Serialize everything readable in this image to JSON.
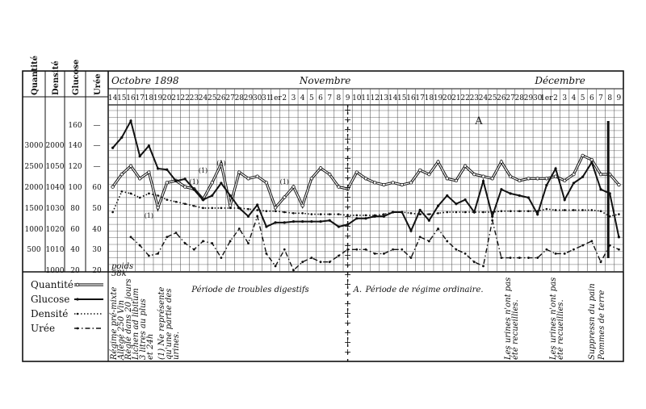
{
  "chart_data": {
    "type": "line",
    "title": "",
    "axes": [
      {
        "name": "Quantité",
        "ticks": [
          "3000",
          "2500",
          "2000",
          "1500",
          "1000",
          "500"
        ]
      },
      {
        "name": "Densité",
        "ticks": [
          "2000",
          "1050",
          "1040",
          "1030",
          "1020",
          "1010",
          "1000"
        ]
      },
      {
        "name": "Glucose",
        "ticks": [
          "160",
          "140",
          "120",
          "100",
          "80",
          "60",
          "40",
          "20"
        ]
      },
      {
        "name": "Urée",
        "ticks": [
          "—",
          "—",
          "—",
          "60",
          "50",
          "40",
          "30",
          "20"
        ]
      }
    ],
    "date_header": {
      "month_labels": [
        "Octobre 1898",
        "Novembre",
        "Décembre"
      ],
      "day_labels": [
        "14",
        "15",
        "16",
        "17",
        "18",
        "19",
        "20",
        "21",
        "22",
        "23",
        "24",
        "25",
        "26",
        "27",
        "28",
        "29",
        "30",
        "31",
        "1er",
        "2",
        "3",
        "4",
        "5",
        "6",
        "7",
        "8",
        "9",
        "10",
        "11",
        "12",
        "13",
        "14",
        "15",
        "16",
        "17",
        "18",
        "19",
        "20",
        "21",
        "22",
        "23",
        "24",
        "25",
        "26",
        "27",
        "28",
        "29",
        "30",
        "1er",
        "2",
        "3",
        "4",
        "5",
        "6",
        "7",
        "8",
        "9"
      ]
    },
    "legend": [
      {
        "name": "Quantité",
        "style": "double-line"
      },
      {
        "name": "Glucose",
        "style": "solid"
      },
      {
        "name": "Densité",
        "style": "dotted"
      },
      {
        "name": "Urée",
        "style": "dash-dot"
      }
    ],
    "series": [
      {
        "name": "Quantité",
        "y_axis": "Quantité",
        "values": [
          2000,
          2300,
          2500,
          2200,
          2350,
          1500,
          2100,
          2150,
          2000,
          1950,
          1700,
          2100,
          2550,
          1550,
          2350,
          2200,
          2250,
          2100,
          1500,
          1750,
          2000,
          1550,
          2200,
          2450,
          2300,
          2000,
          1950,
          2350,
          2200,
          2100,
          2050,
          2100,
          2050,
          2100,
          2400,
          2300,
          2600,
          2200,
          2150,
          2500,
          2300,
          2250,
          2200,
          2600,
          2250,
          2150,
          2200,
          2200,
          2200,
          2250,
          2150,
          2300,
          2750,
          2650,
          2300,
          2300,
          2050
        ]
      },
      {
        "name": "Glucose",
        "y_axis": "Glucose",
        "values": [
          138,
          148,
          164,
          130,
          140,
          118,
          117,
          106,
          108,
          98,
          88,
          92,
          104,
          92,
          80,
          72,
          83,
          62,
          66,
          66,
          67,
          67,
          67,
          67,
          68,
          62,
          64,
          70,
          70,
          72,
          72,
          76,
          76,
          58,
          78,
          68,
          82,
          92,
          84,
          88,
          76,
          106,
          72,
          98,
          94,
          92,
          90,
          74,
          102,
          118,
          88,
          104,
          110,
          124,
          98,
          94,
          52
        ]
      },
      {
        "name": "Densité",
        "y_axis": "Glucose",
        "values": [
          76,
          96,
          94,
          90,
          94,
          92,
          88,
          86,
          84,
          82,
          80,
          80,
          80,
          80,
          80,
          79,
          78,
          77,
          77,
          76,
          75,
          75,
          74,
          74,
          74,
          74,
          73,
          73,
          73,
          73,
          74,
          76,
          76,
          75,
          74,
          74,
          75,
          76,
          76,
          76,
          76,
          76,
          76,
          77,
          77,
          77,
          77,
          77,
          79,
          78,
          78,
          78,
          78,
          78,
          77,
          72,
          74
        ]
      },
      {
        "name": "Urée",
        "y_axis": "Urée",
        "values": [
          null,
          null,
          36,
          32,
          27,
          28,
          36,
          38,
          33,
          30,
          34,
          33,
          26,
          34,
          40,
          33,
          46,
          28,
          22,
          30,
          20,
          24,
          26,
          24,
          24,
          27,
          30,
          30,
          30,
          28,
          28,
          30,
          30,
          26,
          36,
          34,
          40,
          34,
          30,
          28,
          24,
          22,
          44,
          26,
          26,
          26,
          26,
          26,
          30,
          28,
          28,
          30,
          32,
          34,
          24,
          32,
          30
        ]
      }
    ],
    "annotations": [
      {
        "text": "A",
        "where": "upper middle of plot near 2 Décembre"
      },
      {
        "text": "(1)",
        "where": "several labels near the Quantité curve around late October"
      },
      {
        "text": "Période de troubles digestifs",
        "where": "notes row, left half"
      },
      {
        "text": "A.",
        "where": "notes row at dotted separator"
      },
      {
        "text": "Période de régime ordinaire.",
        "where": "notes row, right of separator"
      }
    ],
    "grid": true,
    "separator": {
      "type": "dotted-cross-column",
      "at_day_index": 26
    }
  },
  "notes_block": {
    "lines_left": [
      "Régime pré-mixte",
      "Allégé 250 Vin",
      "Réglé dans 20 jours",
      "Lichen ad libitum",
      "3 litres au plus",
      "et 24h"
    ],
    "lines_footnote": [
      "(1) Ne représente",
      "qu'une partie des",
      "urines."
    ],
    "note_center_left": "Période de troubles digestifs",
    "note_sep": "A.",
    "note_center_right": "Période de régime ordinaire.",
    "note_right_a": [
      "Les urines n'ont pas",
      "été recueillies."
    ],
    "note_right_b": [
      "Les urines n'ont pas",
      "été recueillies."
    ],
    "note_far_right": [
      "Suppressn du pain",
      "Pommes de terre"
    ],
    "bottom_small": [
      "poids",
      "58k"
    ]
  },
  "colors": {
    "ink": "#111111",
    "paper": "#ffffff",
    "grid": "#444444"
  }
}
